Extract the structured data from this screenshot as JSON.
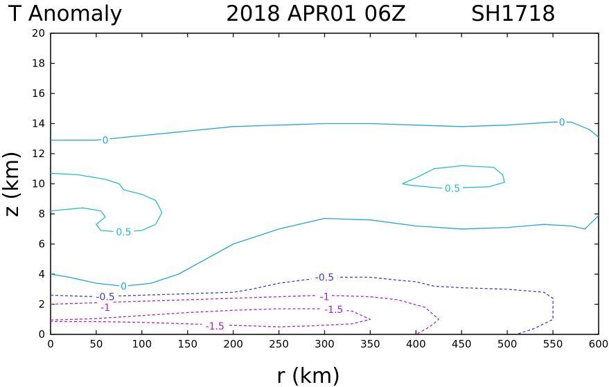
{
  "title": {
    "left": "T Anomaly",
    "date": "2018 APR01 06Z",
    "storm": "SH1718"
  },
  "chart_data": {
    "type": "contour",
    "title": "T Anomaly 2018 APR01 06Z SH1718",
    "xlabel": "r (km)",
    "ylabel": "z (km)",
    "xlim": [
      0,
      600
    ],
    "ylim": [
      0,
      20
    ],
    "xticks": [
      "0",
      "50",
      "100",
      "150",
      "200",
      "250",
      "300",
      "350",
      "400",
      "450",
      "500",
      "550",
      "600"
    ],
    "yticks": [
      "0",
      "2",
      "4",
      "6",
      "8",
      "10",
      "12",
      "14",
      "16",
      "18",
      "20"
    ],
    "colors": {
      "zero": "#22a3e0",
      "pos": "#22c0c4",
      "neg_half": "#3a3ae0",
      "neg": "#b020c0"
    },
    "contours": [
      {
        "level": 0,
        "dashed": false,
        "colorKey": "zero",
        "points": [
          [
            0,
            12.9
          ],
          [
            50,
            12.9
          ],
          [
            100,
            13.2
          ],
          [
            150,
            13.5
          ],
          [
            200,
            13.8
          ],
          [
            250,
            13.9
          ],
          [
            300,
            14.0
          ],
          [
            350,
            14.0
          ],
          [
            400,
            13.9
          ],
          [
            450,
            13.8
          ],
          [
            500,
            13.9
          ],
          [
            550,
            14.1
          ],
          [
            570,
            14.1
          ],
          [
            590,
            13.6
          ],
          [
            600,
            13.1
          ]
        ]
      },
      {
        "level": 0,
        "dashed": false,
        "colorKey": "zero",
        "points": [
          [
            0,
            4.0
          ],
          [
            20,
            3.8
          ],
          [
            50,
            3.4
          ],
          [
            80,
            3.2
          ],
          [
            110,
            3.4
          ],
          [
            140,
            4.0
          ],
          [
            170,
            5.0
          ],
          [
            200,
            6.0
          ],
          [
            250,
            7.0
          ],
          [
            300,
            7.7
          ],
          [
            350,
            7.6
          ],
          [
            400,
            7.2
          ],
          [
            450,
            7.0
          ],
          [
            500,
            7.1
          ],
          [
            540,
            7.3
          ],
          [
            570,
            7.2
          ],
          [
            585,
            7.0
          ],
          [
            600,
            7.9
          ]
        ]
      },
      {
        "level": 0.5,
        "dashed": false,
        "colorKey": "pos",
        "points": [
          [
            0,
            10.7
          ],
          [
            30,
            10.6
          ],
          [
            60,
            10.3
          ],
          [
            75,
            10.0
          ],
          [
            80,
            9.6
          ],
          [
            100,
            9.3
          ],
          [
            115,
            8.9
          ],
          [
            122,
            8.1
          ],
          [
            115,
            7.3
          ],
          [
            100,
            6.9
          ],
          [
            75,
            6.8
          ],
          [
            55,
            6.9
          ],
          [
            50,
            7.3
          ],
          [
            60,
            7.8
          ],
          [
            55,
            8.2
          ],
          [
            35,
            8.4
          ],
          [
            0,
            8.2
          ]
        ]
      },
      {
        "level": 0.5,
        "dashed": false,
        "colorKey": "pos",
        "points": [
          [
            385,
            10.0
          ],
          [
            400,
            10.4
          ],
          [
            420,
            11.0
          ],
          [
            450,
            11.2
          ],
          [
            485,
            11.1
          ],
          [
            495,
            10.6
          ],
          [
            497,
            10.1
          ],
          [
            480,
            9.8
          ],
          [
            430,
            9.7
          ],
          [
            395,
            9.9
          ],
          [
            385,
            10.0
          ]
        ]
      },
      {
        "level": -0.5,
        "dashed": true,
        "colorKey": "neg_half",
        "points": [
          [
            0,
            2.6
          ],
          [
            50,
            2.5
          ],
          [
            100,
            2.6
          ],
          [
            150,
            2.7
          ],
          [
            200,
            2.8
          ],
          [
            220,
            3.0
          ],
          [
            250,
            3.4
          ],
          [
            300,
            3.8
          ],
          [
            350,
            3.8
          ],
          [
            380,
            3.6
          ],
          [
            400,
            3.5
          ],
          [
            420,
            3.2
          ],
          [
            450,
            3.1
          ],
          [
            500,
            3.0
          ],
          [
            540,
            2.8
          ],
          [
            550,
            2.4
          ],
          [
            550,
            1.0
          ],
          [
            530,
            0.4
          ],
          [
            510,
            0
          ]
        ]
      },
      {
        "level": -1,
        "dashed": true,
        "colorKey": "neg",
        "points": [
          [
            0,
            2.0
          ],
          [
            50,
            2.1
          ],
          [
            100,
            2.2
          ],
          [
            150,
            2.3
          ],
          [
            200,
            2.4
          ],
          [
            250,
            2.5
          ],
          [
            300,
            2.6
          ],
          [
            350,
            2.5
          ],
          [
            380,
            2.3
          ],
          [
            410,
            1.8
          ],
          [
            425,
            1.0
          ],
          [
            415,
            0.5
          ],
          [
            400,
            0
          ]
        ]
      },
      {
        "level": -1.5,
        "dashed": true,
        "colorKey": "neg",
        "points": [
          [
            0,
            0.95
          ],
          [
            50,
            1.05
          ],
          [
            100,
            1.25
          ],
          [
            150,
            1.45
          ],
          [
            200,
            1.6
          ],
          [
            250,
            1.7
          ],
          [
            300,
            1.7
          ],
          [
            330,
            1.55
          ],
          [
            350,
            1.0
          ],
          [
            330,
            0.7
          ],
          [
            280,
            0.55
          ],
          [
            250,
            0.5
          ],
          [
            200,
            0.6
          ],
          [
            150,
            0.7
          ],
          [
            100,
            0.8
          ],
          [
            50,
            0.85
          ],
          [
            0,
            0.85
          ]
        ]
      }
    ],
    "labels": [
      {
        "text": "0",
        "r": 60,
        "z": 12.9,
        "colorKey": "zero"
      },
      {
        "text": "0",
        "r": 560,
        "z": 14.1,
        "colorKey": "zero"
      },
      {
        "text": "0",
        "r": 80,
        "z": 3.2,
        "colorKey": "zero"
      },
      {
        "text": "0.5",
        "r": 80,
        "z": 6.8,
        "colorKey": "pos"
      },
      {
        "text": "0.5",
        "r": 440,
        "z": 9.7,
        "colorKey": "pos"
      },
      {
        "text": "-0.5",
        "r": 60,
        "z": 2.5,
        "colorKey": "neg_half"
      },
      {
        "text": "-0.5",
        "r": 300,
        "z": 3.8,
        "colorKey": "neg_half"
      },
      {
        "text": "-1",
        "r": 60,
        "z": 1.8,
        "colorKey": "neg"
      },
      {
        "text": "-1",
        "r": 300,
        "z": 2.5,
        "colorKey": "neg"
      },
      {
        "text": "-1.5",
        "r": 310,
        "z": 1.65,
        "colorKey": "neg"
      },
      {
        "text": "-1.5",
        "r": 180,
        "z": 0.55,
        "colorKey": "neg"
      }
    ]
  }
}
